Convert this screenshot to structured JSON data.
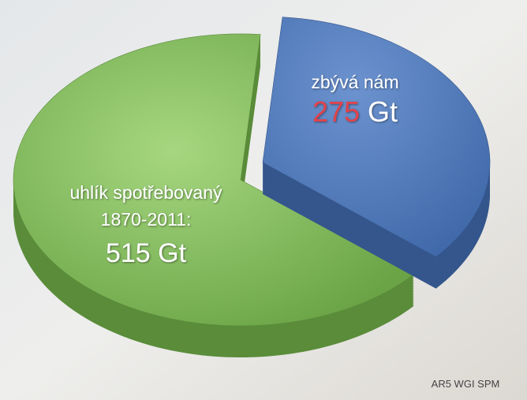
{
  "chart_data": {
    "type": "pie",
    "categories": [
      [
        "uhlík spotřebovaný",
        "1870-2011:"
      ],
      [
        "zbývá nám"
      ]
    ],
    "values": [
      515,
      275
    ],
    "unit": "Gt",
    "colors": [
      "#7fb85a",
      "#4f78b8"
    ],
    "value_label_colors": [
      "#ffffff",
      "#e2434b"
    ],
    "source": "AR5 WGI SPM"
  }
}
